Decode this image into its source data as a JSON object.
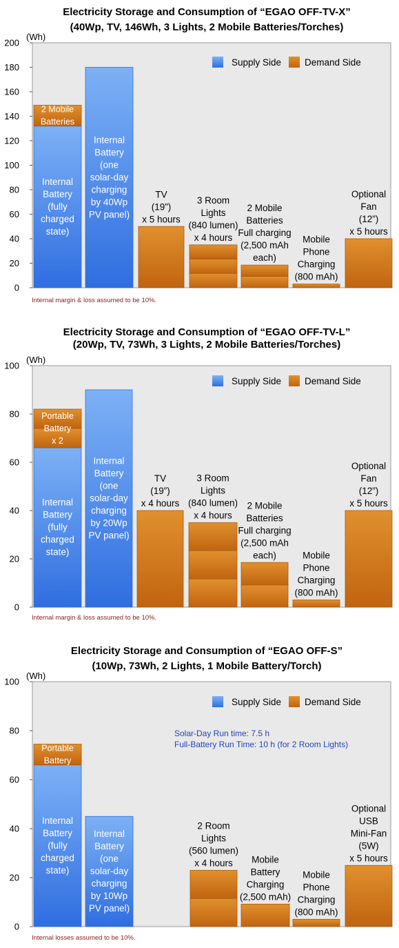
{
  "colors": {
    "supply_top": "#7db1f5",
    "supply_bottom": "#2f6ee0",
    "demand_top": "#e0902e",
    "demand_bottom": "#c06410",
    "plot_bg": "#e9e9e9",
    "note_text": "#8b1a1a",
    "info_text": "#2244bb"
  },
  "chart_data": [
    {
      "type": "bar",
      "stacked": true,
      "title": "Electricity Storage and Consumption of “EGAO OFF-TV-X”",
      "subtitle": "(40Wp, TV, 146Wh, 3 Lights, 2 Mobile Batteries/Torches)",
      "ylabel": "(Wh)",
      "ylim": [
        0,
        200
      ],
      "yticks": [
        0,
        20,
        40,
        60,
        80,
        100,
        120,
        140,
        160,
        180,
        200
      ],
      "grid": false,
      "legend": [
        "Supply Side",
        "Demand Side"
      ],
      "legend_position": "top-right",
      "note": "Internal margin & loss assumed to be 10%.",
      "info_lines": [],
      "bars": [
        {
          "side": "supply",
          "segments": [
            132,
            17
          ],
          "segment_sides": [
            "supply",
            "demand"
          ],
          "labels": [
            [
              "Internal",
              "Battery",
              "(fully",
              "charged",
              "state)"
            ],
            [
              "2 Mobile",
              "Batteries"
            ]
          ]
        },
        {
          "side": "supply",
          "segments": [
            180
          ],
          "segment_sides": [
            "supply"
          ],
          "labels": [
            [
              "Internal",
              "Battery",
              "(one",
              "solar-day",
              "charging",
              "by 40Wp",
              "PV panel)"
            ]
          ]
        },
        {
          "side": "demand",
          "segments": [
            50
          ],
          "segment_sides": [
            "demand"
          ],
          "labels": [
            [
              "TV",
              "(19”)",
              "x 5 hours"
            ]
          ]
        },
        {
          "side": "demand",
          "segments": [
            11.7,
            11.7,
            11.6
          ],
          "segment_sides": [
            "demand",
            "demand",
            "demand"
          ],
          "labels": [
            [
              "3 Room",
              "Lights",
              "(840 lumen)",
              "x 4 hours"
            ]
          ]
        },
        {
          "side": "demand",
          "segments": [
            9.3,
            9.2
          ],
          "segment_sides": [
            "demand",
            "demand"
          ],
          "labels": [
            [
              "2 Mobile",
              "Batteries",
              "Full charging",
              "(2,500 mAh",
              "each)"
            ]
          ]
        },
        {
          "side": "demand",
          "segments": [
            3
          ],
          "segment_sides": [
            "demand"
          ],
          "labels": [
            [
              "Mobile",
              "Phone",
              "Charging",
              "(800 mAh)"
            ]
          ]
        },
        {
          "side": "demand",
          "segments": [
            40
          ],
          "segment_sides": [
            "demand"
          ],
          "labels": [
            [
              "Optional",
              "Fan",
              "(12”)",
              "x 5 hours"
            ]
          ]
        }
      ]
    },
    {
      "type": "bar",
      "stacked": true,
      "title": "Electricity Storage and Consumption of “EGAO OFF-TV-L”",
      "subtitle": "(20Wp, TV, 73Wh, 3 Lights, 2 Mobile Batteries/Torches)",
      "ylabel": "(Wh)",
      "ylim": [
        0,
        100
      ],
      "yticks": [
        0,
        20,
        40,
        60,
        80,
        100
      ],
      "grid": false,
      "legend": [
        "Supply Side",
        "Demand Side"
      ],
      "legend_position": "top-right",
      "note": "Internal margin & loss assumed to be 10%.",
      "info_lines": [],
      "bars": [
        {
          "side": "supply",
          "segments": [
            66,
            8,
            8
          ],
          "segment_sides": [
            "supply",
            "demand",
            "demand"
          ],
          "labels": [
            [
              "Internal",
              "Battery",
              "(fully",
              "charged",
              "state)"
            ],
            [
              "Portable",
              "Battery",
              "x 2"
            ]
          ]
        },
        {
          "side": "supply",
          "segments": [
            90
          ],
          "segment_sides": [
            "supply"
          ],
          "labels": [
            [
              "Internal",
              "Battery",
              "(one",
              "solar-day",
              "charging",
              "by 20Wp",
              "PV panel)"
            ]
          ]
        },
        {
          "side": "demand",
          "segments": [
            40
          ],
          "segment_sides": [
            "demand"
          ],
          "labels": [
            [
              "TV",
              "(19”)",
              "x 4 hours"
            ]
          ]
        },
        {
          "side": "demand",
          "segments": [
            11.7,
            11.7,
            11.6
          ],
          "segment_sides": [
            "demand",
            "demand",
            "demand"
          ],
          "labels": [
            [
              "3 Room",
              "Lights",
              "(840 lumen)",
              "x 4 hours"
            ]
          ]
        },
        {
          "side": "demand",
          "segments": [
            9.2,
            9.3
          ],
          "segment_sides": [
            "demand",
            "demand"
          ],
          "labels": [
            [
              "2 Mobile",
              "Batteries",
              "Full charging",
              "(2,500 mAh",
              "each)"
            ]
          ]
        },
        {
          "side": "demand",
          "segments": [
            3
          ],
          "segment_sides": [
            "demand"
          ],
          "labels": [
            [
              "Mobile",
              "Phone",
              "Charging",
              "(800 mAh)"
            ]
          ]
        },
        {
          "side": "demand",
          "segments": [
            40
          ],
          "segment_sides": [
            "demand"
          ],
          "labels": [
            [
              "Optional",
              "Fan",
              "(12”)",
              "x 5 hours"
            ]
          ]
        }
      ]
    },
    {
      "type": "bar",
      "stacked": true,
      "title": "Electricity Storage and Consumption of “EGAO OFF-S”",
      "subtitle": "(10Wp, 73Wh, 2 Lights, 1 Mobile Battery/Torch)",
      "ylabel": "(Wh)",
      "ylim": [
        0,
        100
      ],
      "yticks": [
        0,
        20,
        40,
        60,
        80,
        100
      ],
      "grid": false,
      "legend": [
        "Supply Side",
        "Demand Side"
      ],
      "legend_position": "top-right",
      "note": "Internal losses assumed to be 10%.",
      "info_lines": [
        "Solar-Day Run time:      7.5 h",
        "Full-Battery Run Time:  10 h  (for 2 Room Lights)"
      ],
      "bars": [
        {
          "side": "supply",
          "segments": [
            66,
            8.5
          ],
          "segment_sides": [
            "supply",
            "demand"
          ],
          "labels": [
            [
              "Internal",
              "Battery",
              "(fully",
              "charged",
              "state)"
            ],
            [
              "Portable",
              "Battery"
            ]
          ]
        },
        {
          "side": "supply",
          "segments": [
            45
          ],
          "segment_sides": [
            "supply"
          ],
          "labels": [
            [
              "Internal",
              "Battery",
              "(one",
              "solar-day",
              "charging",
              "by 10Wp",
              "PV panel)"
            ]
          ]
        },
        {
          "side": "none",
          "segments": [],
          "segment_sides": [],
          "labels": []
        },
        {
          "side": "demand",
          "segments": [
            11.5,
            11.5
          ],
          "segment_sides": [
            "demand",
            "demand"
          ],
          "labels": [
            [
              "2 Room",
              "Lights",
              "(560 lumen)",
              "x 4 hours"
            ]
          ]
        },
        {
          "side": "demand",
          "segments": [
            9.2
          ],
          "segment_sides": [
            "demand"
          ],
          "labels": [
            [
              "Mobile",
              "Battery",
              "Charging",
              "(2,500 mAh)"
            ]
          ]
        },
        {
          "side": "demand",
          "segments": [
            3
          ],
          "segment_sides": [
            "demand"
          ],
          "labels": [
            [
              "Mobile",
              "Phone",
              "Charging",
              "(800 mAh)"
            ]
          ]
        },
        {
          "side": "demand",
          "segments": [
            25
          ],
          "segment_sides": [
            "demand"
          ],
          "labels": [
            [
              "Optional",
              "USB",
              "Mini-Fan",
              "(5W)",
              "x 5 hours"
            ]
          ]
        }
      ]
    }
  ]
}
